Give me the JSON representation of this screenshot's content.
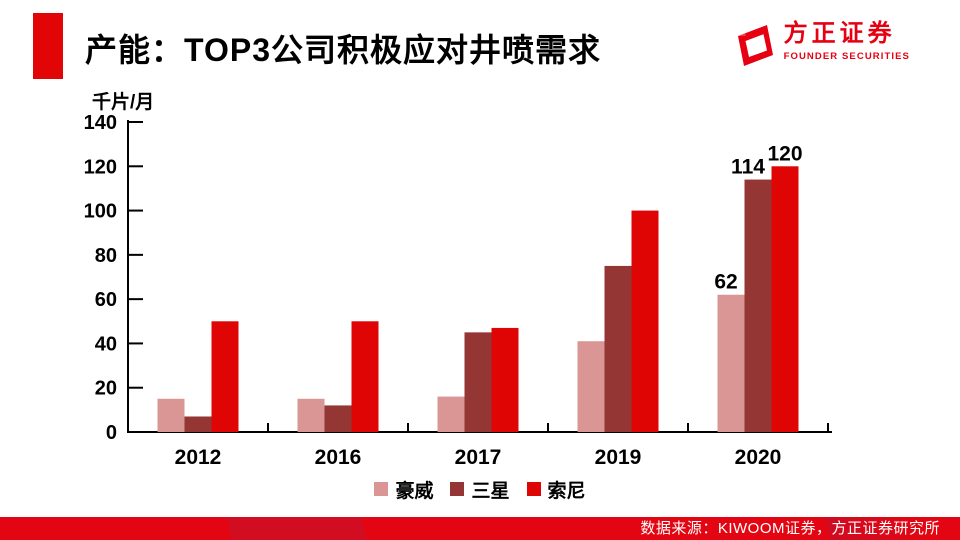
{
  "slide": {
    "title": "产能：TOP3公司积极应对井喷需求",
    "source": "数据来源：KIWOOM证券，方正证券研究所",
    "accent_color": "#e20505"
  },
  "logo": {
    "name_cn": "方正证券",
    "name_en": "FOUNDER SECURITIES",
    "color": "#e60012"
  },
  "chart_data": {
    "type": "bar",
    "title": "",
    "unit_label": "千片/月",
    "categories": [
      "2012",
      "2016",
      "2017",
      "2019",
      "2020"
    ],
    "series": [
      {
        "name": "豪威",
        "color": "#d99694",
        "values": [
          15,
          15,
          16,
          41,
          62
        ]
      },
      {
        "name": "三星",
        "color": "#943634",
        "values": [
          7,
          12,
          45,
          75,
          114
        ]
      },
      {
        "name": "索尼",
        "color": "#e00505",
        "values": [
          50,
          50,
          47,
          100,
          120
        ]
      }
    ],
    "ylim": [
      0,
      140
    ],
    "ytick_step": 20,
    "yticks": [
      0,
      20,
      40,
      60,
      80,
      100,
      120,
      140
    ],
    "grid": false,
    "legend_position": "bottom",
    "data_labels": {
      "category": "2020",
      "values": [
        "62",
        "114",
        "120"
      ]
    }
  }
}
